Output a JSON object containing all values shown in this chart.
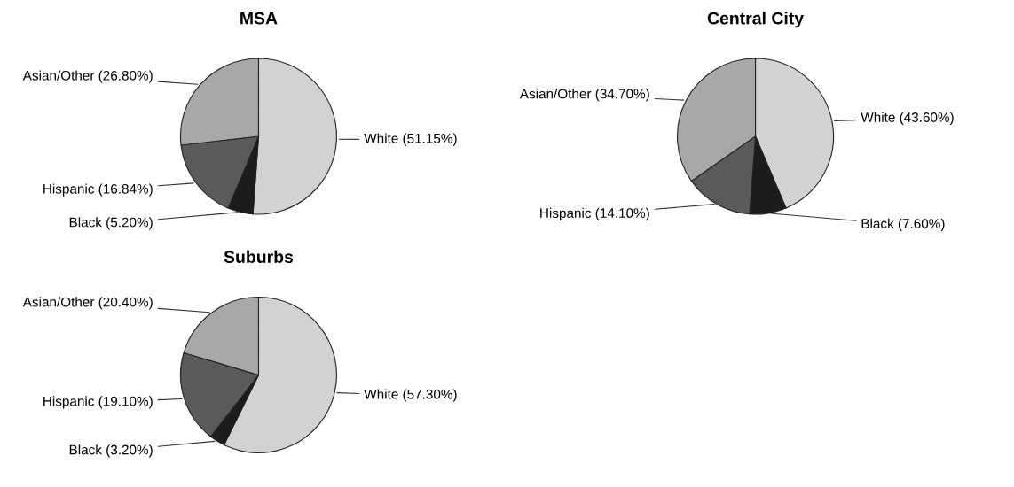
{
  "chart_data": [
    {
      "type": "pie",
      "title": "MSA",
      "categories": [
        "White",
        "Black",
        "Hispanic",
        "Asian/Other"
      ],
      "values": [
        51.15,
        5.2,
        16.84,
        26.8
      ],
      "value_labels": [
        "(51.15%)",
        "(5.20%)",
        "(16.84%)",
        "(26.80%)"
      ],
      "colors": [
        "#d2d2d2",
        "#1c1c1c",
        "#5a5a5a",
        "#a8a8a8"
      ]
    },
    {
      "type": "pie",
      "title": "Central City",
      "categories": [
        "White",
        "Black",
        "Hispanic",
        "Asian/Other"
      ],
      "values": [
        43.6,
        7.6,
        14.1,
        34.7
      ],
      "value_labels": [
        "(43.60%)",
        "(7.60%)",
        "(14.10%)",
        "(34.70%)"
      ],
      "colors": [
        "#d2d2d2",
        "#1c1c1c",
        "#5a5a5a",
        "#a8a8a8"
      ]
    },
    {
      "type": "pie",
      "title": "Suburbs",
      "categories": [
        "White",
        "Black",
        "Hispanic",
        "Asian/Other"
      ],
      "values": [
        57.3,
        3.2,
        19.1,
        20.4
      ],
      "value_labels": [
        "(57.30%)",
        "(3.20%)",
        "(19.10%)",
        "(20.40%)"
      ],
      "colors": [
        "#d2d2d2",
        "#1c1c1c",
        "#5a5a5a",
        "#a8a8a8"
      ]
    }
  ]
}
